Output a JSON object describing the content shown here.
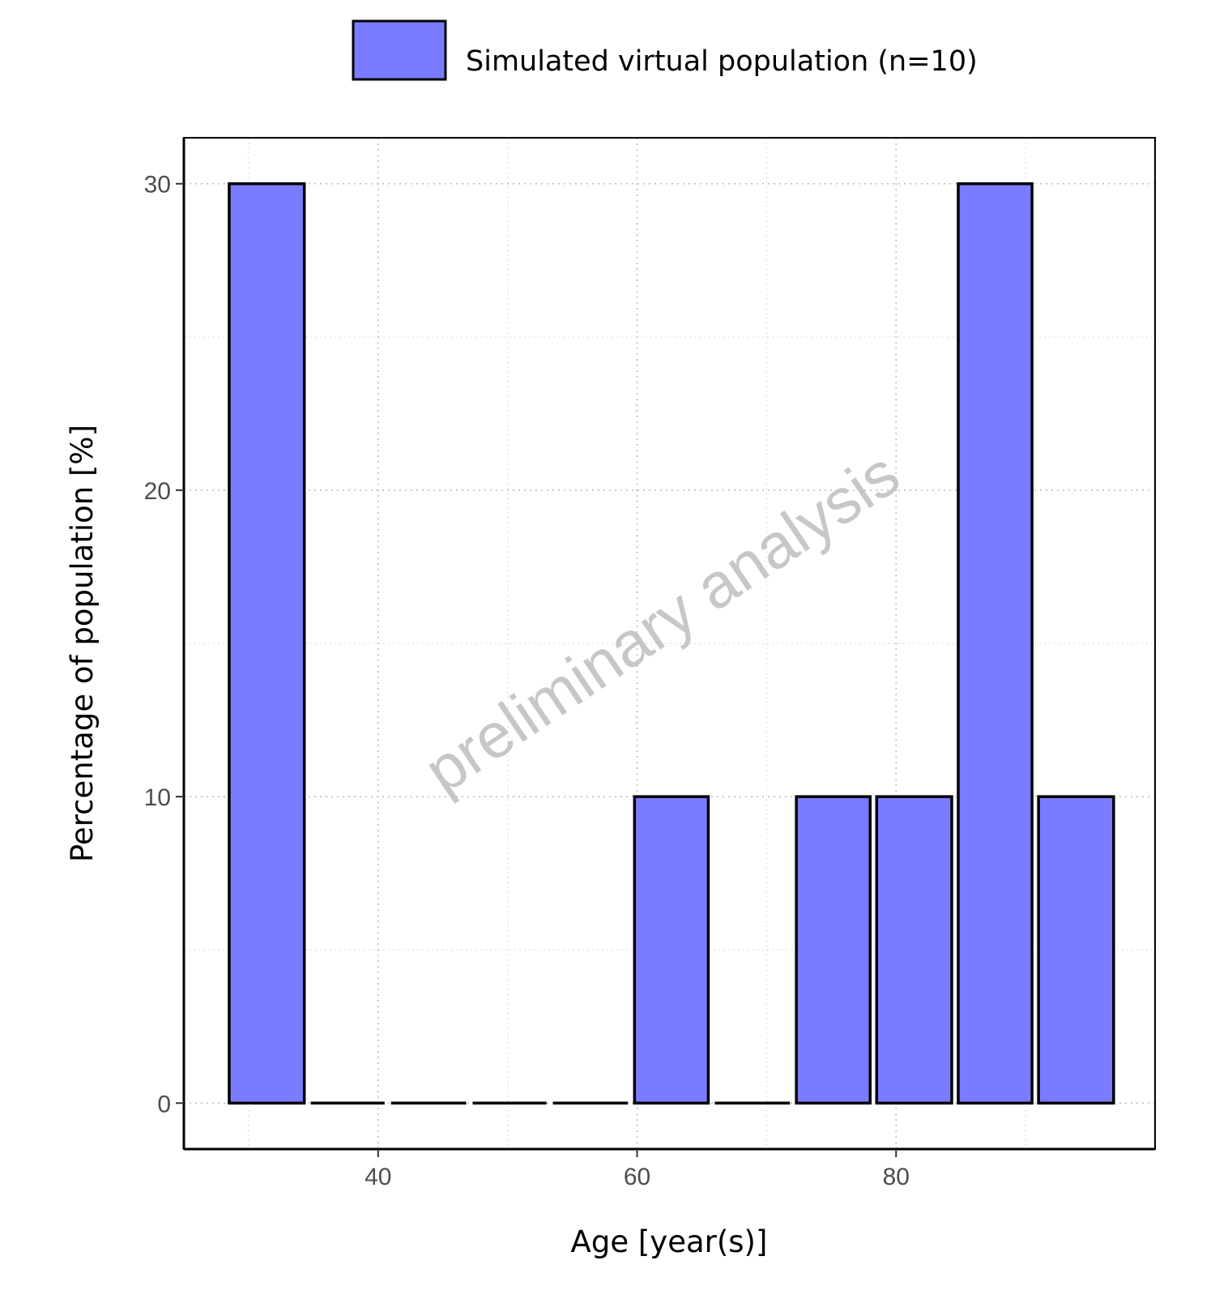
{
  "chart_data": {
    "type": "bar",
    "xlabel": "Age [year(s)]",
    "ylabel": "Percentage of population [%]",
    "xlim": [
      25,
      100
    ],
    "ylim": [
      -1.5,
      31.5
    ],
    "x_ticks": [
      40,
      60,
      80
    ],
    "y_ticks": [
      0,
      10,
      20,
      30
    ],
    "x_minor_grid": [
      30,
      50,
      70,
      90
    ],
    "y_minor_grid": [
      5,
      15,
      25
    ],
    "grid": "dotted",
    "legend_position": "top",
    "series": [
      {
        "name": "Simulated virtual population (n=10)",
        "color": "#7b7bff",
        "bins": [
          {
            "x_start": 28.5,
            "x_end": 34.3,
            "value": 30
          },
          {
            "x_start": 34.8,
            "x_end": 40.5,
            "value": 0
          },
          {
            "x_start": 41.0,
            "x_end": 46.8,
            "value": 0
          },
          {
            "x_start": 47.3,
            "x_end": 53.0,
            "value": 0
          },
          {
            "x_start": 53.5,
            "x_end": 59.3,
            "value": 0
          },
          {
            "x_start": 59.8,
            "x_end": 65.5,
            "value": 10
          },
          {
            "x_start": 66.0,
            "x_end": 71.8,
            "value": 0
          },
          {
            "x_start": 72.3,
            "x_end": 78.0,
            "value": 10
          },
          {
            "x_start": 78.5,
            "x_end": 84.3,
            "value": 10
          },
          {
            "x_start": 84.8,
            "x_end": 90.5,
            "value": 30
          },
          {
            "x_start": 91.0,
            "x_end": 96.8,
            "value": 10
          }
        ]
      }
    ]
  },
  "watermark": "preliminary analysis"
}
